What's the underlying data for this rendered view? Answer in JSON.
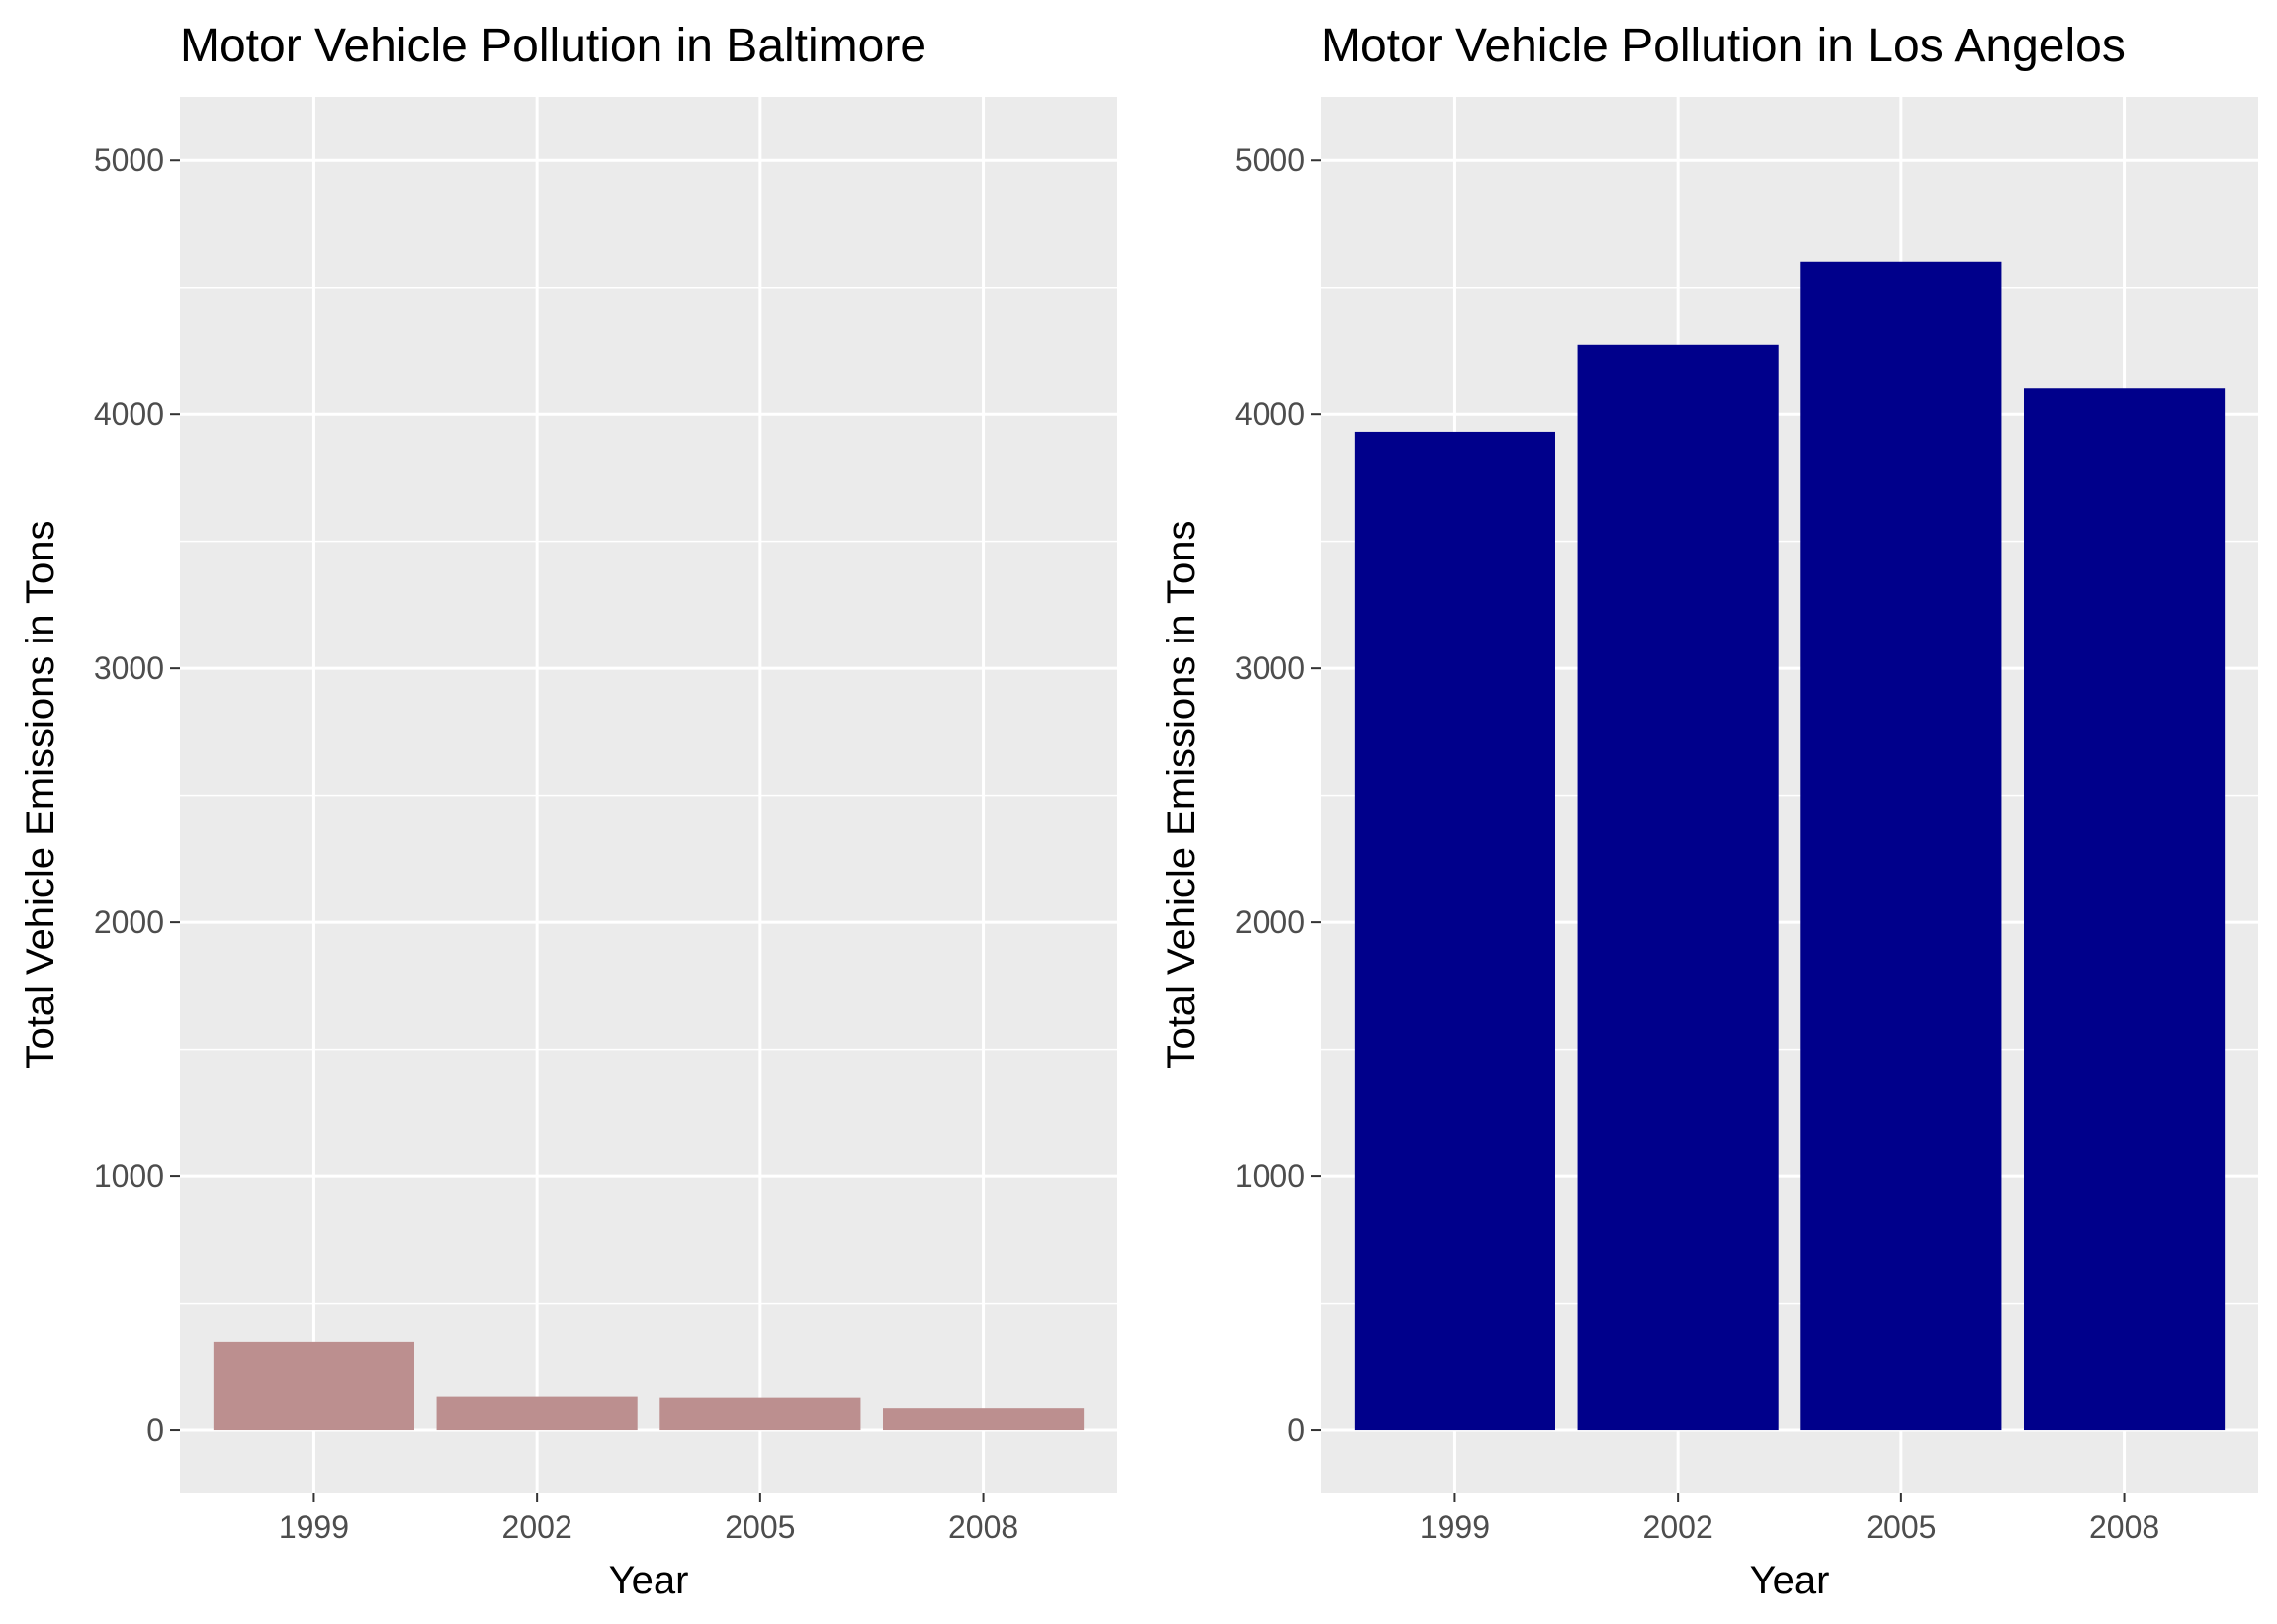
{
  "chart_data": [
    {
      "type": "bar",
      "title": "Motor Vehicle Pollution in Baltimore",
      "xlabel": "Year",
      "ylabel": "Total Vehicle Emissions in Tons",
      "categories": [
        "1999",
        "2002",
        "2005",
        "2008"
      ],
      "values": [
        347,
        134,
        130,
        89
      ],
      "ylim": [
        -245,
        5250
      ],
      "yticks": [
        0,
        1000,
        2000,
        3000,
        4000,
        5000
      ],
      "bar_color": "#BC8F8F",
      "panel_background": "#EBEBEB",
      "grid": true,
      "legend": "none"
    },
    {
      "type": "bar",
      "title": "Motor Vehicle Pollution in Los Angelos",
      "xlabel": "Year",
      "ylabel": "Total Vehicle Emissions in Tons",
      "categories": [
        "1999",
        "2002",
        "2005",
        "2008"
      ],
      "values": [
        3931,
        4274,
        4601,
        4101
      ],
      "ylim": [
        -245,
        5250
      ],
      "yticks": [
        0,
        1000,
        2000,
        3000,
        4000,
        5000
      ],
      "bar_color": "#00008B",
      "panel_background": "#EBEBEB",
      "grid": true,
      "legend": "none"
    }
  ]
}
